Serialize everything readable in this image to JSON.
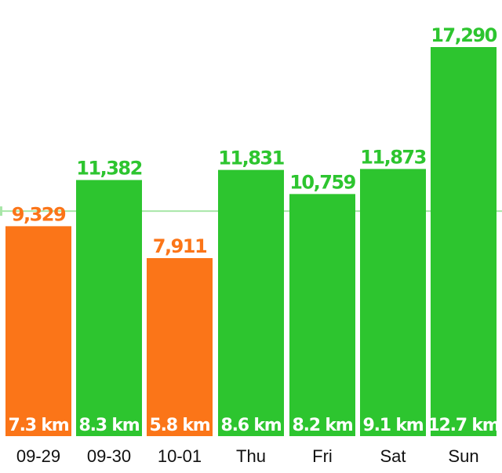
{
  "chart_data": {
    "type": "bar",
    "categories": [
      "09-29",
      "09-30",
      "10-01",
      "Thu",
      "Fri",
      "Sat",
      "Sun"
    ],
    "values": [
      9329,
      11382,
      7911,
      11831,
      10759,
      11873,
      17290
    ],
    "value_labels": [
      "9,329",
      "11,382",
      "7,911",
      "11,831",
      "10,759",
      "11,873",
      "17,290"
    ],
    "distance_labels": [
      "7.3 km",
      "8.3 km",
      "5.8 km",
      "8.6 km",
      "8.2 km",
      "9.1 km",
      "12.7 km"
    ],
    "goal_line": 10000,
    "ylim": [
      0,
      18300
    ],
    "grid": false,
    "colors": {
      "above_goal": "#2dc52f",
      "below_goal": "#fb7518",
      "goal_line": "#a8e6a8"
    }
  }
}
